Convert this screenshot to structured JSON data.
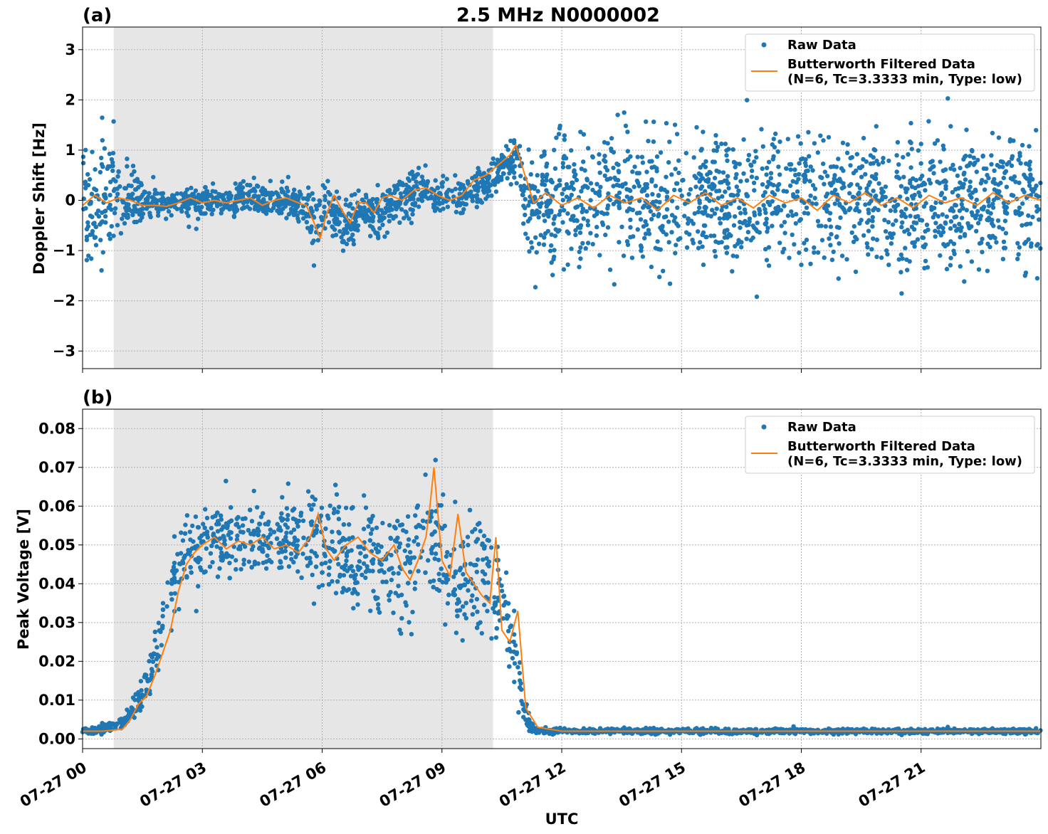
{
  "figure": {
    "title": "2.5 MHz N0000002",
    "xlabel": "UTC"
  },
  "colors": {
    "raw": "#1f77b4",
    "filtered": "#ff7f0e",
    "night_shade": "#e6e6e6",
    "grid": "#b0b0b0"
  },
  "chart_data": [
    {
      "type": "scatter",
      "panel_label": "(a)",
      "title": "2.5 MHz N0000002",
      "xlabel": "",
      "ylabel": "Doppler Shift [Hz]",
      "x_unit": "hours UTC on 07-27",
      "xlim": [
        0,
        24
      ],
      "ylim": [
        -3.35,
        3.45
      ],
      "yticks": [
        3,
        2,
        1,
        0,
        -1,
        -2,
        -3
      ],
      "ytick_labels": [
        "3",
        "2",
        "1",
        "0",
        "−1",
        "−2",
        "−3"
      ],
      "grid": true,
      "shaded_interval": [
        0.78,
        10.28
      ],
      "legend": {
        "position": "top-right",
        "entries": [
          "Raw Data",
          "Butterworth Filtered Data",
          "(N=6, Tc=3.3333 min, Type: low)"
        ]
      },
      "series": [
        {
          "name": "Raw Data",
          "kind": "band",
          "x": [
            0,
            0.4,
            0.8,
            1.0,
            1.3,
            1.6,
            2.0,
            2.5,
            3.0,
            3.5,
            4.0,
            4.5,
            5.0,
            5.5,
            5.8,
            6.0,
            6.3,
            6.6,
            6.9,
            7.2,
            7.5,
            7.8,
            8.2,
            8.6,
            9.0,
            9.5,
            10.0,
            10.3,
            10.6,
            10.9,
            11.1,
            11.5,
            12,
            13,
            14,
            15,
            16,
            17,
            18,
            19,
            20,
            21,
            22,
            23,
            24
          ],
          "upper": [
            1.8,
            1.6,
            1.4,
            1.0,
            0.8,
            0.4,
            0.3,
            0.4,
            0.5,
            0.5,
            0.6,
            0.5,
            0.5,
            0.4,
            0.3,
            0.4,
            0.3,
            0.3,
            0.4,
            0.3,
            0.5,
            0.6,
            0.7,
            0.8,
            0.6,
            0.6,
            0.8,
            1.0,
            1.3,
            1.5,
            1.6,
            1.7,
            1.8,
            1.9,
            1.9,
            1.9,
            1.9,
            1.9,
            1.9,
            1.9,
            1.9,
            1.9,
            1.9,
            1.9,
            1.9
          ],
          "lower": [
            -1.8,
            -1.6,
            -1.3,
            -1.1,
            -0.9,
            -0.5,
            -0.4,
            -0.5,
            -0.5,
            -0.5,
            -0.4,
            -0.5,
            -0.5,
            -0.6,
            -1.2,
            -0.7,
            -0.9,
            -1.3,
            -0.8,
            -0.9,
            -1.1,
            -0.6,
            -0.5,
            -0.4,
            -0.4,
            -0.4,
            -0.2,
            0.0,
            0.1,
            0.2,
            -1.5,
            -1.7,
            -1.8,
            -1.9,
            -1.9,
            -1.9,
            -1.9,
            -1.9,
            -1.9,
            -1.9,
            -1.9,
            -1.9,
            -1.9,
            -1.9,
            -1.9
          ]
        },
        {
          "name": "Butterworth Filtered Data",
          "kind": "line",
          "x": [
            0,
            0.3,
            0.6,
            0.9,
            1.2,
            1.5,
            1.8,
            2.1,
            2.4,
            2.7,
            3.0,
            3.3,
            3.6,
            3.9,
            4.2,
            4.5,
            4.8,
            5.1,
            5.4,
            5.6,
            5.8,
            5.95,
            6.1,
            6.3,
            6.5,
            6.7,
            6.9,
            7.1,
            7.3,
            7.5,
            7.7,
            8.0,
            8.3,
            8.6,
            8.9,
            9.2,
            9.5,
            9.8,
            10.1,
            10.4,
            10.7,
            10.85,
            11.0,
            11.3,
            11.6,
            12.0,
            12.4,
            12.8,
            13.2,
            13.6,
            14.0,
            14.4,
            14.8,
            15.2,
            15.6,
            16.0,
            16.4,
            16.8,
            17.2,
            17.6,
            18.0,
            18.4,
            18.8,
            19.2,
            19.6,
            20.0,
            20.4,
            20.8,
            21.2,
            21.6,
            22.0,
            22.4,
            22.8,
            23.2,
            23.6,
            24.0
          ],
          "y": [
            -0.1,
            0.1,
            -0.05,
            0.05,
            0.0,
            -0.1,
            -0.1,
            -0.12,
            -0.05,
            0.05,
            -0.05,
            0.0,
            -0.05,
            0.0,
            0.05,
            -0.1,
            0.0,
            0.05,
            -0.05,
            -0.1,
            -0.45,
            -0.75,
            -0.3,
            0.1,
            -0.2,
            -0.45,
            -0.05,
            -0.05,
            -0.25,
            0.05,
            0.1,
            0.0,
            0.2,
            0.25,
            0.1,
            0.0,
            0.1,
            0.4,
            0.5,
            0.7,
            0.9,
            1.1,
            0.7,
            -0.05,
            0.15,
            -0.1,
            0.05,
            -0.15,
            0.1,
            -0.05,
            0.05,
            -0.2,
            0.1,
            -0.05,
            0.15,
            -0.1,
            0.05,
            -0.15,
            0.1,
            -0.05,
            0.05,
            -0.2,
            0.1,
            -0.05,
            0.15,
            -0.1,
            0.05,
            -0.15,
            0.1,
            -0.05,
            0.05,
            -0.1,
            0.15,
            -0.05,
            0.1,
            0.0
          ]
        }
      ]
    },
    {
      "type": "scatter",
      "panel_label": "(b)",
      "title": "",
      "xlabel": "UTC",
      "ylabel": "Peak Voltage [V]",
      "x_unit": "hours UTC on 07-27",
      "xlim": [
        0,
        24
      ],
      "ylim": [
        -0.0025,
        0.085
      ],
      "yticks": [
        0.0,
        0.01,
        0.02,
        0.03,
        0.04,
        0.05,
        0.06,
        0.07,
        0.08
      ],
      "ytick_labels": [
        "0.00",
        "0.01",
        "0.02",
        "0.03",
        "0.04",
        "0.05",
        "0.06",
        "0.07",
        "0.08"
      ],
      "xticks": [
        0,
        3,
        6,
        9,
        12,
        15,
        18,
        21
      ],
      "xtick_labels": [
        "07-27 00",
        "07-27 03",
        "07-27 06",
        "07-27 09",
        "07-27 12",
        "07-27 15",
        "07-27 18",
        "07-27 21"
      ],
      "grid": true,
      "shaded_interval": [
        0.78,
        10.28
      ],
      "legend": {
        "position": "top-right",
        "entries": [
          "Raw Data",
          "Butterworth Filtered Data",
          "(N=6, Tc=3.3333 min, Type: low)"
        ]
      },
      "series": [
        {
          "name": "Raw Data",
          "kind": "band",
          "x": [
            0,
            0.5,
            1.0,
            1.3,
            1.6,
            1.9,
            2.2,
            2.5,
            2.8,
            3.2,
            4.0,
            5.0,
            5.8,
            6.2,
            6.8,
            7.3,
            7.8,
            8.3,
            8.6,
            8.8,
            9.0,
            9.3,
            9.6,
            9.9,
            10.2,
            10.4,
            10.6,
            10.8,
            11.0,
            11.2,
            11.5,
            12,
            24
          ],
          "upper": [
            0.003,
            0.004,
            0.006,
            0.012,
            0.022,
            0.035,
            0.05,
            0.064,
            0.066,
            0.067,
            0.067,
            0.066,
            0.066,
            0.067,
            0.066,
            0.068,
            0.066,
            0.066,
            0.072,
            0.076,
            0.068,
            0.066,
            0.065,
            0.066,
            0.066,
            0.06,
            0.05,
            0.04,
            0.02,
            0.006,
            0.003,
            0.003,
            0.003
          ],
          "lower": [
            0.001,
            0.001,
            0.002,
            0.003,
            0.006,
            0.012,
            0.022,
            0.032,
            0.035,
            0.036,
            0.037,
            0.037,
            0.037,
            0.03,
            0.028,
            0.026,
            0.023,
            0.026,
            0.03,
            0.03,
            0.026,
            0.02,
            0.018,
            0.02,
            0.02,
            0.02,
            0.015,
            0.008,
            0.003,
            0.001,
            0.001,
            0.001,
            0.001
          ]
        },
        {
          "name": "Butterworth Filtered Data",
          "kind": "line",
          "x": [
            0,
            0.5,
            1.0,
            1.2,
            1.4,
            1.6,
            1.8,
            2.0,
            2.2,
            2.4,
            2.6,
            2.8,
            3.0,
            3.3,
            3.6,
            3.9,
            4.2,
            4.5,
            4.8,
            5.1,
            5.4,
            5.7,
            5.9,
            6.1,
            6.3,
            6.6,
            6.9,
            7.2,
            7.5,
            7.8,
            8.0,
            8.2,
            8.4,
            8.6,
            8.7,
            8.8,
            8.9,
            9.0,
            9.2,
            9.4,
            9.6,
            9.8,
            10.0,
            10.2,
            10.35,
            10.5,
            10.7,
            10.9,
            11.1,
            11.4,
            12,
            14,
            16,
            18,
            20,
            22,
            24
          ],
          "y": [
            0.002,
            0.002,
            0.0025,
            0.005,
            0.009,
            0.011,
            0.016,
            0.022,
            0.028,
            0.038,
            0.045,
            0.048,
            0.05,
            0.052,
            0.049,
            0.051,
            0.05,
            0.052,
            0.049,
            0.05,
            0.048,
            0.052,
            0.058,
            0.049,
            0.046,
            0.05,
            0.052,
            0.048,
            0.046,
            0.05,
            0.044,
            0.041,
            0.046,
            0.052,
            0.06,
            0.07,
            0.058,
            0.046,
            0.042,
            0.058,
            0.043,
            0.04,
            0.037,
            0.035,
            0.052,
            0.028,
            0.025,
            0.033,
            0.008,
            0.003,
            0.002,
            0.002,
            0.002,
            0.002,
            0.002,
            0.002,
            0.002
          ]
        }
      ]
    }
  ]
}
